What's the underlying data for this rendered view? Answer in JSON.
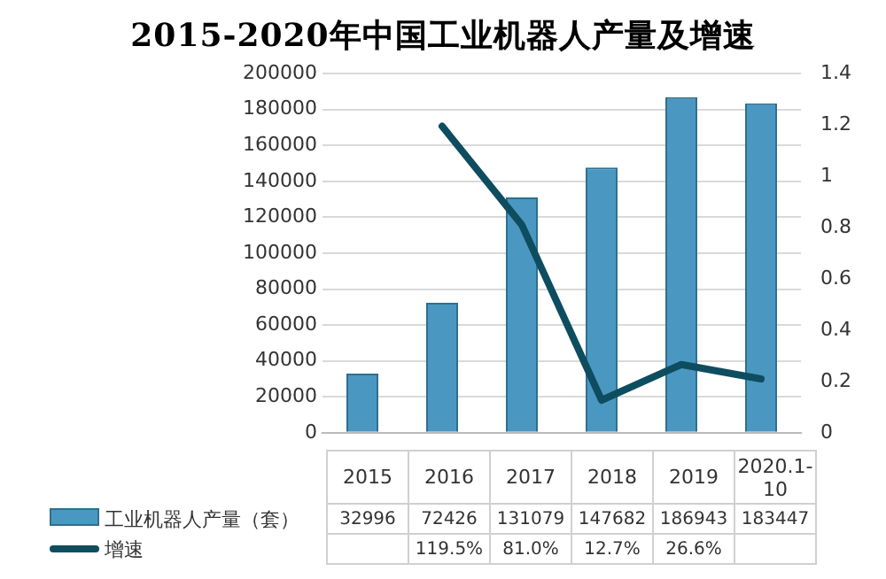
{
  "chart_data": {
    "type": "bar",
    "title": "2015-2020年中国工业机器人产量及增速",
    "categories": [
      "2015",
      "2016",
      "2017",
      "2018",
      "2019",
      "2020.1-10"
    ],
    "series": [
      {
        "name": "工业机器人产量（套）",
        "color": "#4a98c2",
        "values": [
          32996,
          72426,
          131079,
          147682,
          186943,
          183447
        ],
        "value_labels": [
          "32996",
          "72426",
          "131079",
          "147682",
          "186943",
          "183447"
        ]
      },
      {
        "name": "增速",
        "type": "line",
        "axis": "y2",
        "color": "#0e4d60",
        "values": [
          null,
          1.195,
          0.81,
          0.127,
          0.266,
          0.21
        ],
        "value_labels": [
          null,
          "119.5%",
          "81.0%",
          "12.7%",
          "26.6%",
          null
        ]
      }
    ],
    "ylim": [
      0,
      200000
    ],
    "yticks": [
      0,
      20000,
      40000,
      60000,
      80000,
      100000,
      120000,
      140000,
      160000,
      180000,
      200000
    ],
    "y2lim": [
      0,
      1.4
    ],
    "y2ticks": [
      0,
      0.2,
      0.4,
      0.6,
      0.8,
      1,
      1.2,
      1.4
    ],
    "grid": "y",
    "legend": "bottom",
    "marker": "none"
  }
}
